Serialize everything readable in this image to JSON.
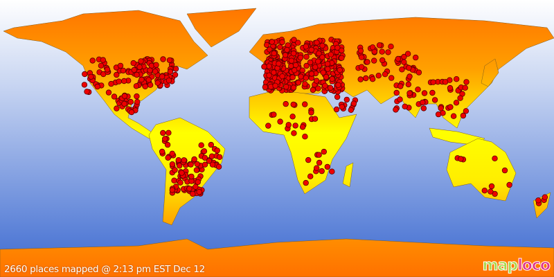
{
  "caption": "2660 places mapped @ 2:13 pm EST Dec 12",
  "places_count": 2660,
  "logo": {
    "part1": "map",
    "part2": "loco"
  },
  "colors": {
    "ocean_top": "#ffffff",
    "ocean_bottom": "#3a68d0",
    "land_polar": "#ff7a00",
    "land_equator": "#ffff00",
    "marker": "#ee0000",
    "marker_outline": "#550000"
  }
}
